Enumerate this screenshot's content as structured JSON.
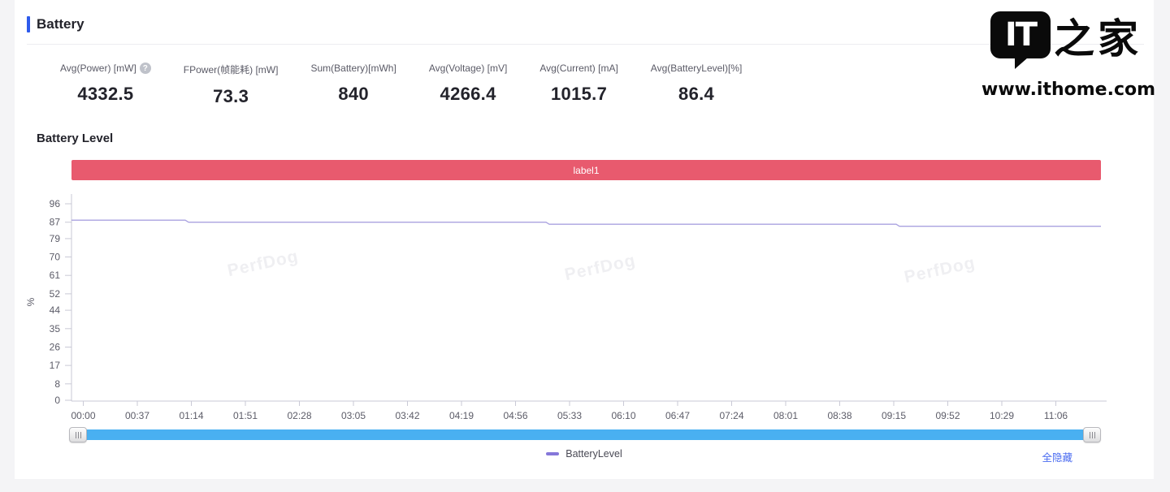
{
  "header": {
    "title": "Battery"
  },
  "stats": [
    {
      "label": "Avg(Power) [mW]",
      "value": "4332.5",
      "has_help": true,
      "help_glyph": "?"
    },
    {
      "label": "FPower(帧能耗) [mW]",
      "value": "73.3",
      "has_help": false
    },
    {
      "label": "Sum(Battery)[mWh]",
      "value": "840",
      "has_help": false
    },
    {
      "label": "Avg(Voltage) [mV]",
      "value": "4266.4",
      "has_help": false
    },
    {
      "label": "Avg(Current) [mA]",
      "value": "1015.7",
      "has_help": false
    },
    {
      "label": "Avg(BatteryLevel)[%]",
      "value": "86.4",
      "has_help": false
    }
  ],
  "section": {
    "title": "Battery Level"
  },
  "chart_data": {
    "type": "line",
    "title": "Battery Level",
    "ylabel": "%",
    "ylim": [
      0,
      96
    ],
    "y_ticks": [
      96,
      87,
      79,
      70,
      61,
      52,
      44,
      35,
      26,
      17,
      8,
      0
    ],
    "x_ticks": [
      "00:00",
      "00:37",
      "01:14",
      "01:51",
      "02:28",
      "03:05",
      "03:42",
      "04:19",
      "04:56",
      "05:33",
      "06:10",
      "06:47",
      "07:24",
      "08:01",
      "08:38",
      "09:15",
      "09:52",
      "10:29",
      "11:06"
    ],
    "grid": false,
    "legend_position": "bottom-center",
    "annotation": {
      "label": "label1",
      "color": "#e85a6e"
    },
    "watermark": "PerfDog",
    "series": [
      {
        "name": "BatteryLevel",
        "line_color": "#aaa2e0",
        "legend_color": "#8577d9",
        "unit": "%",
        "points_x_fraction_value": [
          [
            0,
            88
          ],
          [
            0.1105,
            88
          ],
          [
            0.1137,
            87
          ],
          [
            0.4609,
            87
          ],
          [
            0.4641,
            86
          ],
          [
            0.8011,
            86
          ],
          [
            0.8043,
            85
          ],
          [
            1,
            85
          ]
        ]
      }
    ]
  },
  "footer": {
    "hide_all": "全隐藏"
  },
  "watermark_brand": {
    "logo_it": "IT",
    "logo_cn": "之家",
    "url": "www.ithome.com"
  },
  "colors": {
    "accent_blue": "#2e5bec",
    "annotation_red": "#e85a6e",
    "scrollbar_blue": "#49b0f1",
    "link_blue": "#4a6bf0",
    "series_purple": "#aaa2e0"
  }
}
